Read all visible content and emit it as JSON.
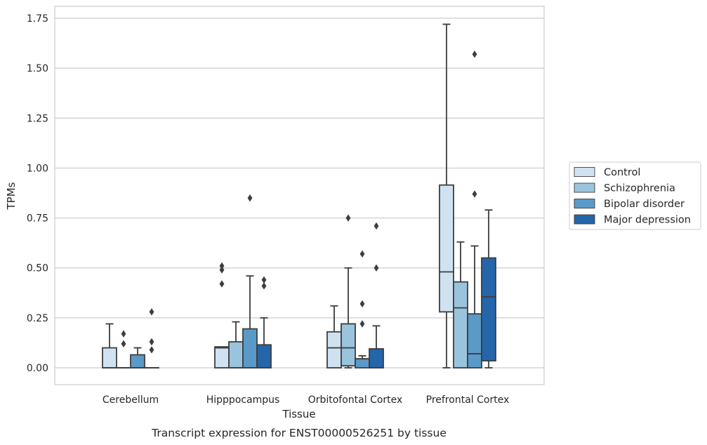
{
  "caption": "Transcript expression for ENST00000526251 by tissue",
  "chart_data": {
    "type": "box",
    "xlabel": "Tissue",
    "ylabel": "TPMs",
    "ylim": [
      -0.08,
      1.81
    ],
    "yticks": [
      "0.00",
      "0.25",
      "0.50",
      "0.75",
      "1.00",
      "1.25",
      "1.50",
      "1.75"
    ],
    "grid": "horizontal",
    "legend_placement": "right",
    "categories": [
      "Cerebellum",
      "Hipppocampus",
      "Orbitofontal Cortex",
      "Prefrontal Cortex"
    ],
    "series": [
      {
        "name": "Control",
        "color": "#d0e2f2",
        "boxes": [
          {
            "whislo": 0.0,
            "q1": 0.0,
            "med": 0.0,
            "q3": 0.1,
            "whishi": 0.22,
            "fliers": []
          },
          {
            "whislo": 0.0,
            "q1": 0.0,
            "med": 0.1,
            "q3": 0.105,
            "whishi": 0.105,
            "fliers": [
              0.42,
              0.49,
              0.51
            ]
          },
          {
            "whislo": 0.0,
            "q1": 0.0,
            "med": 0.1,
            "q3": 0.18,
            "whishi": 0.31,
            "fliers": []
          },
          {
            "whislo": 0.0,
            "q1": 0.28,
            "med": 0.48,
            "q3": 0.915,
            "whishi": 1.72,
            "fliers": []
          }
        ]
      },
      {
        "name": "Schizophrenia",
        "color": "#9ac4de",
        "boxes": [
          {
            "whislo": 0.0,
            "q1": 0.0,
            "med": 0.0,
            "q3": 0.0,
            "whishi": 0.0,
            "fliers": [
              0.12,
              0.17
            ]
          },
          {
            "whislo": 0.0,
            "q1": 0.0,
            "med": 0.0,
            "q3": 0.13,
            "whishi": 0.23,
            "fliers": []
          },
          {
            "whislo": 0.0,
            "q1": 0.01,
            "med": 0.1,
            "q3": 0.22,
            "whishi": 0.5,
            "fliers": [
              0.75
            ]
          },
          {
            "whislo": 0.0,
            "q1": 0.0,
            "med": 0.3,
            "q3": 0.43,
            "whishi": 0.63,
            "fliers": []
          }
        ]
      },
      {
        "name": "Bipolar disorder",
        "color": "#5a9ac8",
        "boxes": [
          {
            "whislo": 0.0,
            "q1": 0.0,
            "med": 0.0,
            "q3": 0.065,
            "whishi": 0.1,
            "fliers": []
          },
          {
            "whislo": 0.0,
            "q1": 0.0,
            "med": 0.0,
            "q3": 0.195,
            "whishi": 0.46,
            "fliers": [
              0.85
            ]
          },
          {
            "whislo": 0.0,
            "q1": 0.0,
            "med": 0.045,
            "q3": 0.045,
            "whishi": 0.06,
            "fliers": [
              0.22,
              0.32,
              0.57
            ]
          },
          {
            "whislo": 0.0,
            "q1": 0.0,
            "med": 0.07,
            "q3": 0.27,
            "whishi": 0.61,
            "fliers": [
              0.87,
              1.57
            ]
          }
        ]
      },
      {
        "name": "Major depression",
        "color": "#2565a9",
        "boxes": [
          {
            "whislo": 0.0,
            "q1": 0.0,
            "med": 0.0,
            "q3": 0.0,
            "whishi": 0.0,
            "fliers": [
              0.09,
              0.13,
              0.28
            ]
          },
          {
            "whislo": 0.0,
            "q1": 0.0,
            "med": 0.0,
            "q3": 0.115,
            "whishi": 0.25,
            "fliers": [
              0.41,
              0.44
            ]
          },
          {
            "whislo": 0.0,
            "q1": 0.0,
            "med": 0.0,
            "q3": 0.095,
            "whishi": 0.21,
            "fliers": [
              0.5,
              0.71
            ]
          },
          {
            "whislo": 0.0,
            "q1": 0.035,
            "med": 0.355,
            "q3": 0.55,
            "whishi": 0.79,
            "fliers": []
          }
        ]
      }
    ]
  }
}
